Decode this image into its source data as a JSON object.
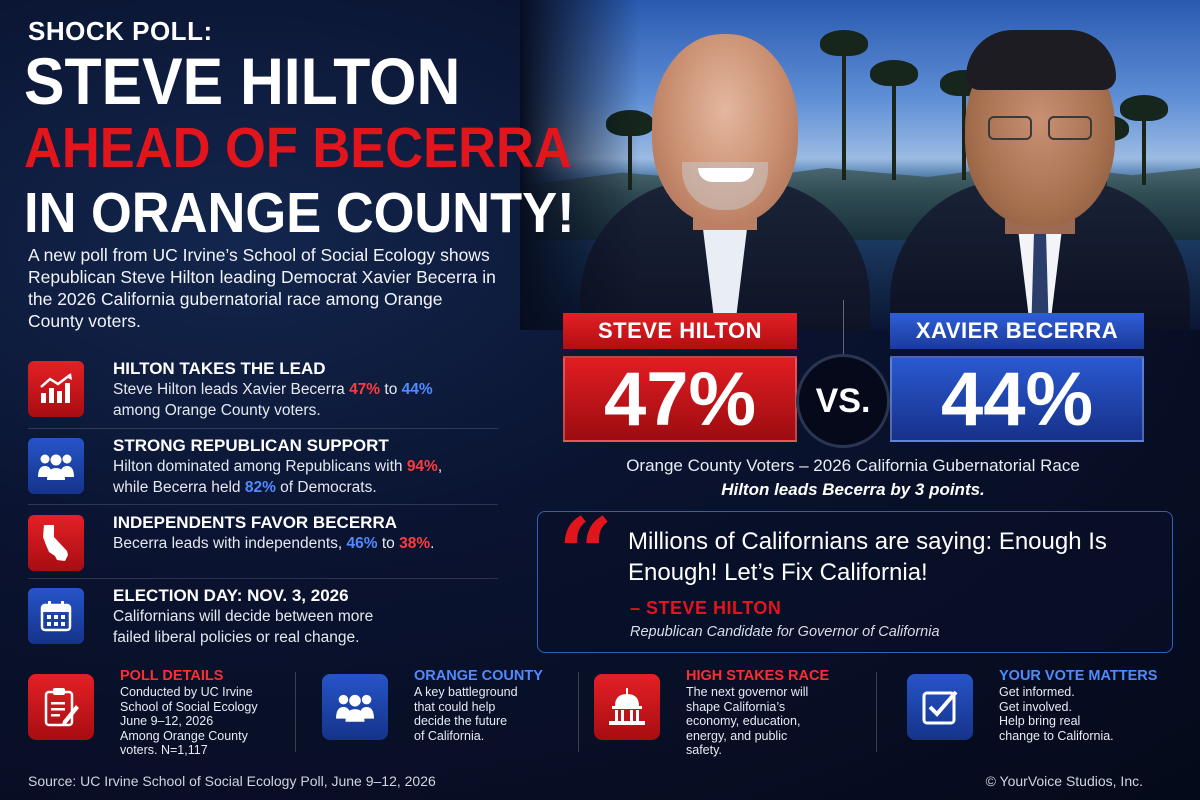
{
  "header": {
    "kicker": "SHOCK POLL:",
    "headline_line1": "STEVE HILTON",
    "headline_line2": "AHEAD OF BECERRA",
    "headline_line3": "IN ORANGE COUNTY!"
  },
  "intro": "A new poll from UC Irvine’s School of Social Ecology shows Republican Steve Hilton leading Democrat Xavier Becerra in the 2026 California gubernatorial race among Orange County voters.",
  "points": [
    {
      "icon": "trend-chart-icon",
      "title": "HILTON TAKES THE LEAD",
      "text_a": "Steve Hilton leads Xavier Becerra ",
      "value_1": "47%",
      "text_b": " to ",
      "value_2": "44%",
      "text_c": "among Orange County voters."
    },
    {
      "icon": "people-group-icon",
      "title": "STRONG REPUBLICAN SUPPORT",
      "text_a": "Hilton dominated among Republicans with ",
      "value_1": "94%",
      "text_b": ",",
      "text_c": "while Becerra held ",
      "value_2": "82%",
      "text_d": " of Democrats."
    },
    {
      "icon": "california-map-icon",
      "title": "INDEPENDENTS FAVOR BECERRA",
      "text_a": "Becerra leads with independents, ",
      "value_1": "46%",
      "text_b": " to ",
      "value_2": "38%",
      "text_c": "."
    },
    {
      "icon": "calendar-icon",
      "title": "ELECTION DAY: NOV. 3, 2026",
      "text": "Californians will decide between more failed liberal policies or real change."
    }
  ],
  "matchup": {
    "left_name": "STEVE HILTON",
    "left_pct": "47%",
    "vs": "VS.",
    "right_name": "XAVIER BECERRA",
    "right_pct": "44%",
    "race": "Orange County Voters – 2026 California Gubernatorial Race",
    "lead": "Hilton leads Becerra by 3 points."
  },
  "quote": {
    "mark": "“",
    "text": "Millions of Californians are saying: Enough Is Enough! Let’s Fix California!",
    "by": "– STEVE HILTON",
    "role": "Republican Candidate for Governor of California"
  },
  "cards": [
    {
      "icon": "clipboard-icon",
      "title": "POLL DETAILS",
      "text": "Conducted by UC Irvine\nSchool of Social Ecology\nJune 9–12, 2026\nAmong Orange County\nvoters. N=1,117"
    },
    {
      "icon": "people-group-icon",
      "title": "ORANGE COUNTY",
      "text": "A key battleground\nthat could help\ndecide the future\nof California."
    },
    {
      "icon": "capitol-building-icon",
      "title": "HIGH STAKES RACE",
      "text": "The next governor will\nshape California’s\neconomy, education,\nenergy, and public\nsafety."
    },
    {
      "icon": "checkbox-icon",
      "title": "YOUR VOTE MATTERS",
      "text": "Get informed.\nGet involved.\nHelp bring real\nchange to California."
    }
  ],
  "footer": {
    "source": "Source: UC Irvine School of Social Ecology Poll, June 9–12, 2026",
    "copyright": "© YourVoice Studios, Inc."
  },
  "colors": {
    "accent_red": "#e3151c",
    "accent_blue": "#2a59d0",
    "background": "#070d1f"
  }
}
